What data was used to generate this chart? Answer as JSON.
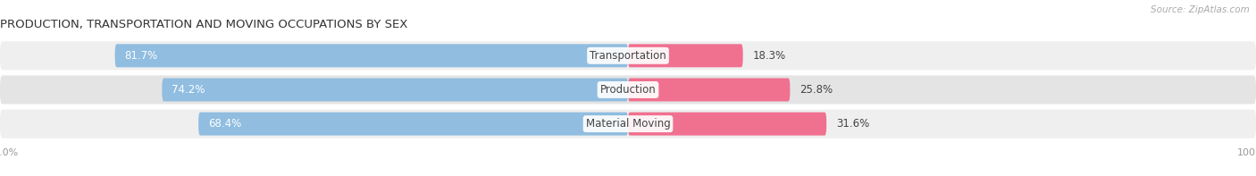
{
  "title": "PRODUCTION, TRANSPORTATION AND MOVING OCCUPATIONS BY SEX",
  "source": "Source: ZipAtlas.com",
  "categories": [
    "Transportation",
    "Production",
    "Material Moving"
  ],
  "male_values": [
    81.7,
    74.2,
    68.4
  ],
  "female_values": [
    18.3,
    25.8,
    31.6
  ],
  "male_color": "#90bde0",
  "female_color": "#f07090",
  "row_bg_colors": [
    "#efefef",
    "#e4e4e4",
    "#efefef"
  ],
  "label_color": "#444444",
  "title_color": "#333333",
  "axis_label_color": "#999999",
  "legend_male_color": "#90bde0",
  "legend_female_color": "#f07090",
  "figsize": [
    14.06,
    1.97
  ],
  "dpi": 100
}
